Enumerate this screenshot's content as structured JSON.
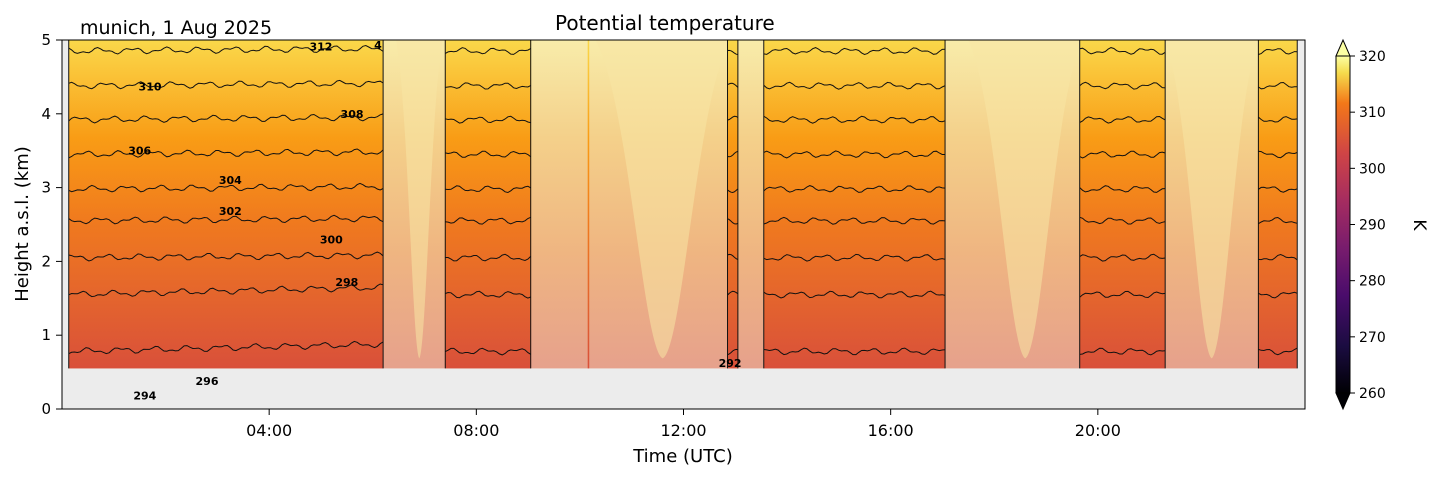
{
  "chart_data": {
    "type": "heatmap",
    "title": "Potential temperature",
    "subtitle": "munich, 1 Aug 2025",
    "xlabel": "Time (UTC)",
    "ylabel": "Height a.s.l. (km)",
    "x_range_hours": [
      0,
      24
    ],
    "x_ticks": [
      {
        "hour": 4,
        "label": "04:00"
      },
      {
        "hour": 8,
        "label": "08:00"
      },
      {
        "hour": 12,
        "label": "12:00"
      },
      {
        "hour": 16,
        "label": "16:00"
      },
      {
        "hour": 20,
        "label": "20:00"
      }
    ],
    "ylim": [
      0,
      5
    ],
    "y_ticks": [
      "0",
      "1",
      "2",
      "3",
      "4",
      "5"
    ],
    "data_floor_km": 0.55,
    "colorbar": {
      "label": "K",
      "range": [
        260,
        320
      ],
      "ticks": [
        "260",
        "270",
        "280",
        "290",
        "300",
        "310",
        "320"
      ],
      "colormap": "inferno",
      "extend": "both"
    },
    "valid_segments_hours": [
      [
        0.13,
        6.2
      ],
      [
        7.4,
        9.05
      ],
      [
        10.15,
        10.18
      ],
      [
        12.85,
        13.05
      ],
      [
        13.55,
        17.05
      ],
      [
        19.65,
        21.3
      ],
      [
        23.1,
        23.85
      ]
    ],
    "contour_labels": [
      {
        "hour": 1.6,
        "height_km": 0.18,
        "text": "294"
      },
      {
        "hour": 2.8,
        "height_km": 0.38,
        "text": "296"
      },
      {
        "hour": 5.5,
        "height_km": 1.72,
        "text": "298"
      },
      {
        "hour": 5.2,
        "height_km": 2.3,
        "text": "300"
      },
      {
        "hour": 3.25,
        "height_km": 2.68,
        "text": "302"
      },
      {
        "hour": 3.25,
        "height_km": 3.1,
        "text": "304"
      },
      {
        "hour": 1.5,
        "height_km": 3.5,
        "text": "306"
      },
      {
        "hour": 5.6,
        "height_km": 4.0,
        "text": "308"
      },
      {
        "hour": 1.7,
        "height_km": 4.37,
        "text": "310"
      },
      {
        "hour": 5.0,
        "height_km": 4.91,
        "text": "312"
      },
      {
        "hour": 6.1,
        "height_km": 4.93,
        "text": "4"
      },
      {
        "hour": 12.9,
        "height_km": 0.62,
        "text": "292"
      }
    ]
  }
}
